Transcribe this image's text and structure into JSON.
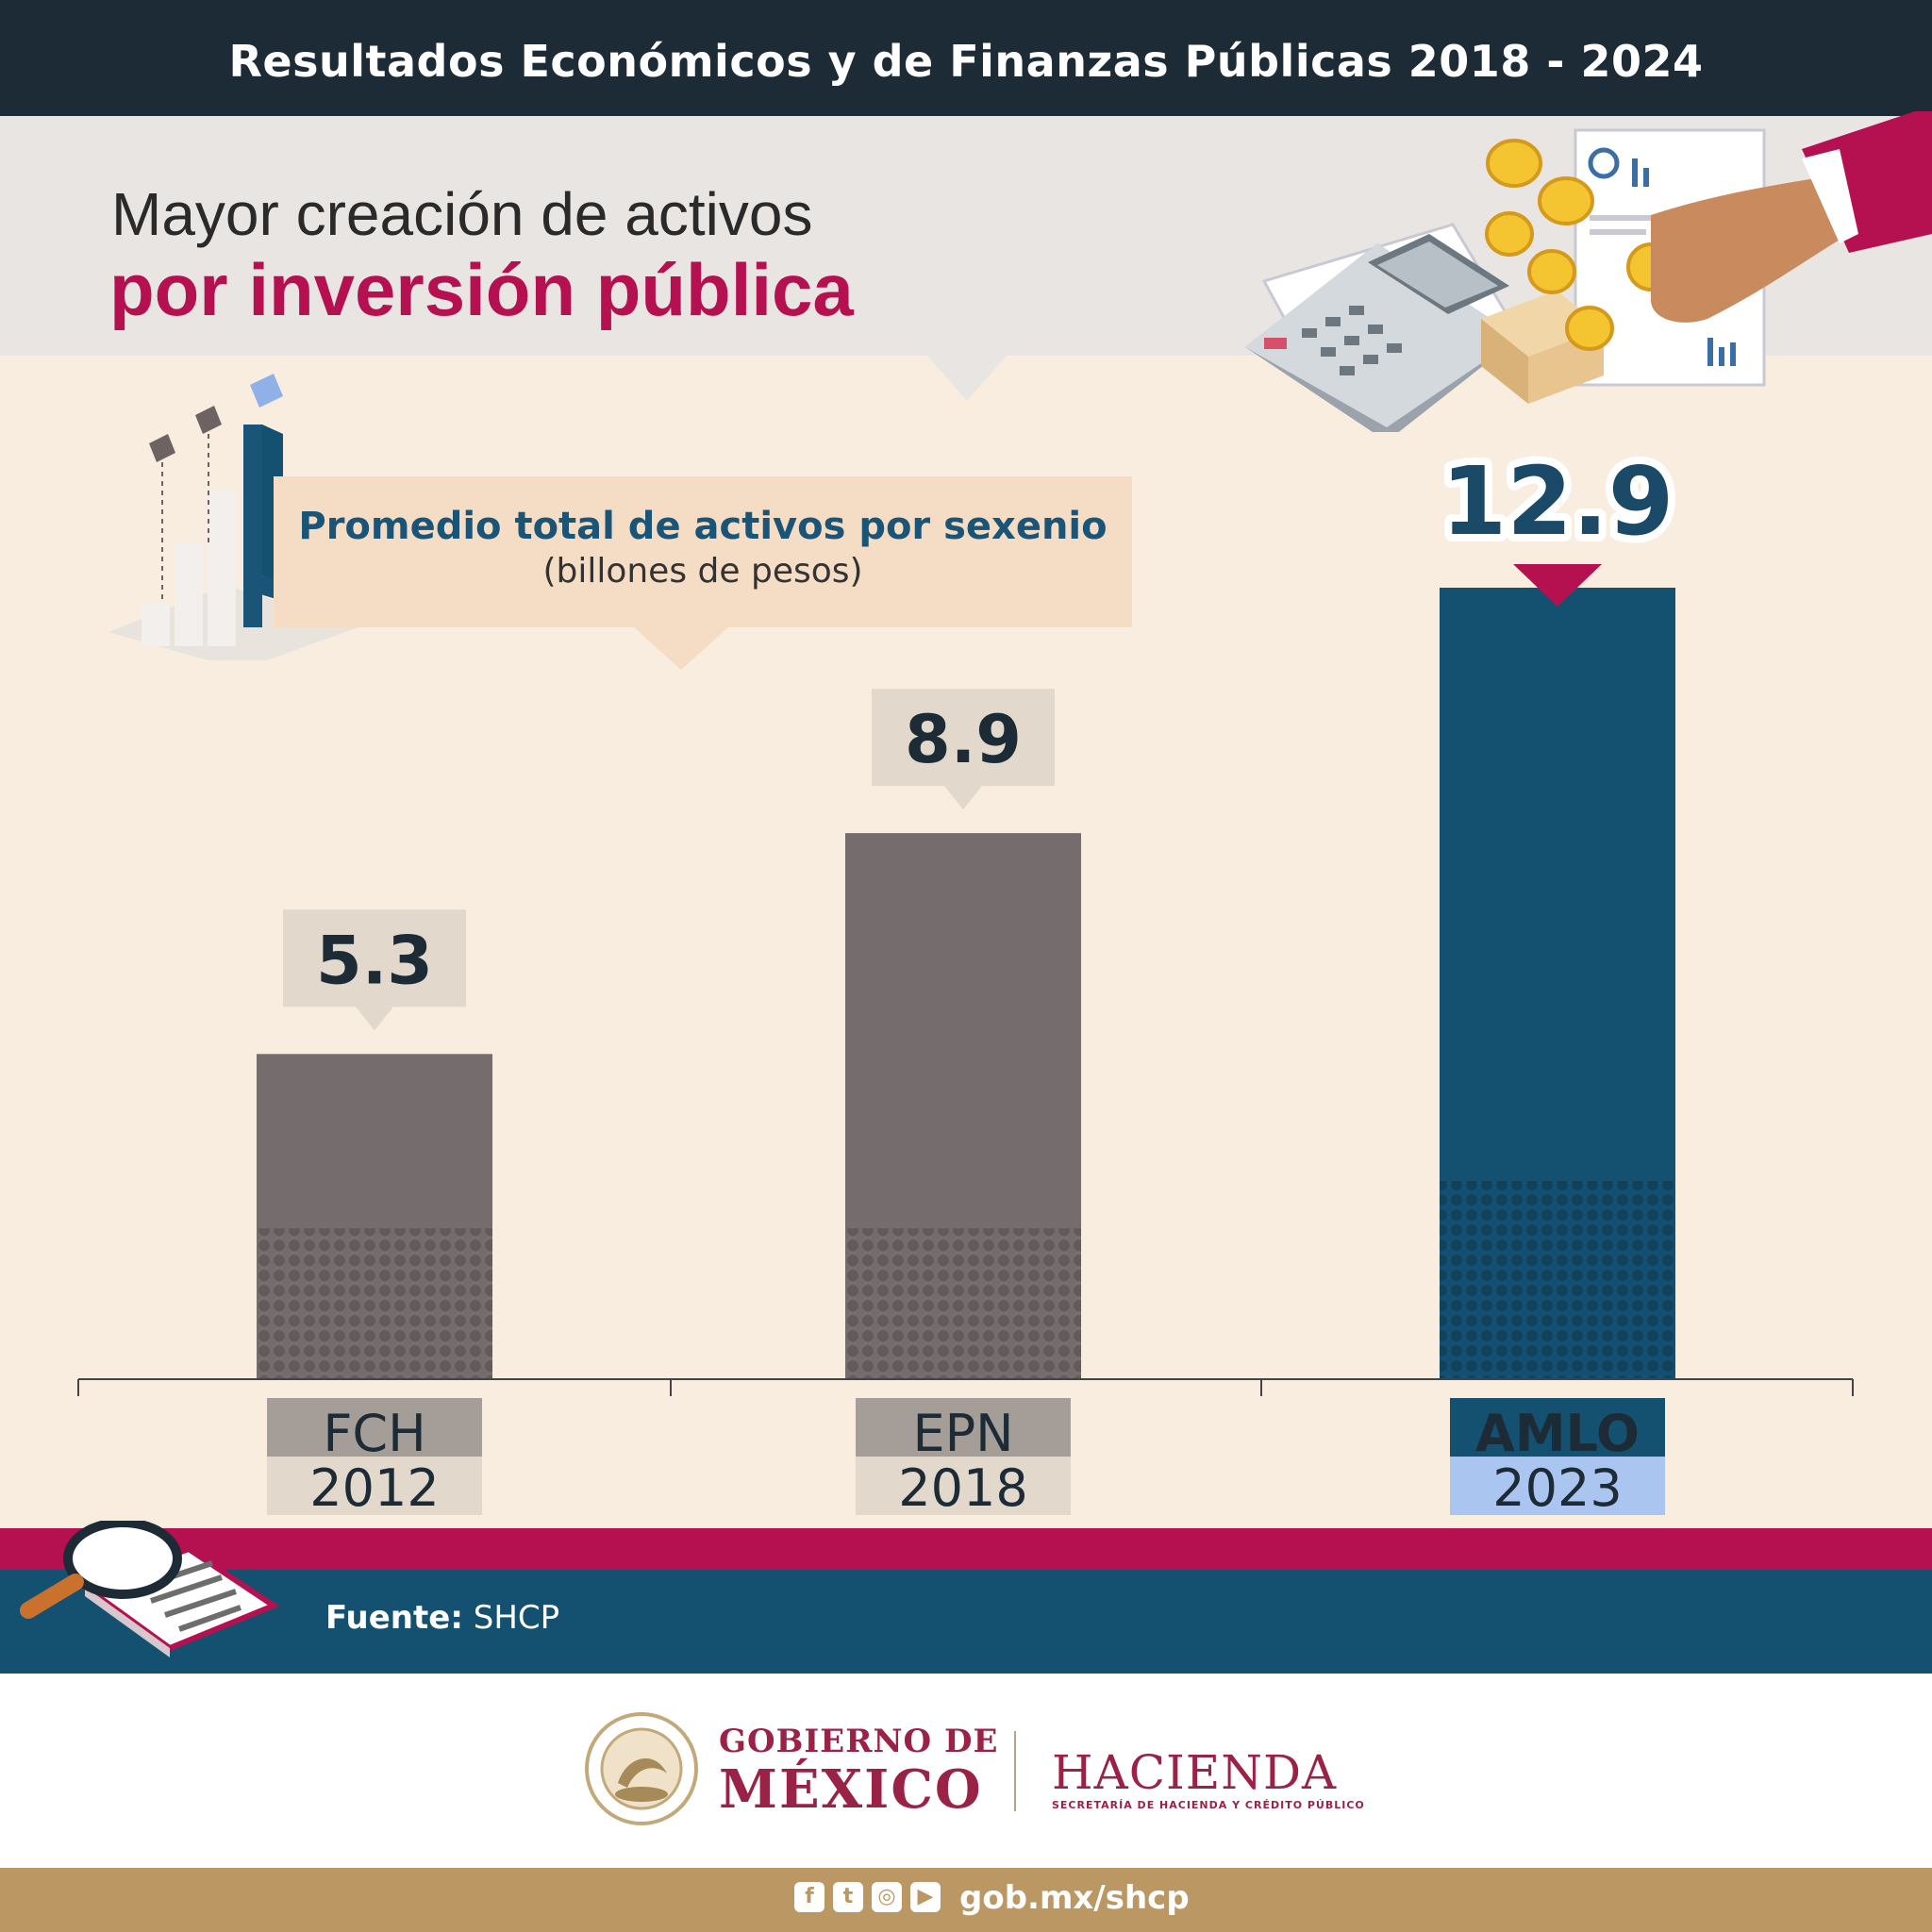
{
  "header": {
    "top_title": "Resultados Económicos y de Finanzas Públicas 2018 - 2024",
    "title_line1": "Mayor creación de activos",
    "title_line2": "por inversión pública"
  },
  "legend": {
    "title": "Promedio total de activos por sexenio",
    "subtitle": "(billones de pesos)"
  },
  "chart_data": {
    "type": "bar",
    "categories": [
      "FCH",
      "EPN",
      "AMLO"
    ],
    "years": [
      "2012",
      "2018",
      "2023"
    ],
    "values": [
      5.3,
      8.9,
      12.9
    ],
    "value_labels": [
      "5.3",
      "8.9",
      "12.9"
    ],
    "ylim": [
      0,
      12.9
    ],
    "grid": false,
    "colors": {
      "past": "#756d6d",
      "highlight": "#14506f"
    }
  },
  "source": {
    "label": "Fuente:",
    "value": "SHCP"
  },
  "footer": {
    "gob_line1": "GOBIERNO DE",
    "gob_line2": "MÉXICO",
    "hacienda": "HACIENDA",
    "hacienda_sub": "SECRETARÍA DE HACIENDA Y CRÉDITO PÚBLICO",
    "website": "gob.mx/shcp",
    "social_icons": [
      "facebook-icon",
      "twitter-icon",
      "instagram-icon",
      "youtube-icon"
    ]
  },
  "colors": {
    "brand_red": "#b5104f",
    "brand_blue": "#14506f",
    "dark": "#1c2b35",
    "gold": "#bb9863"
  }
}
